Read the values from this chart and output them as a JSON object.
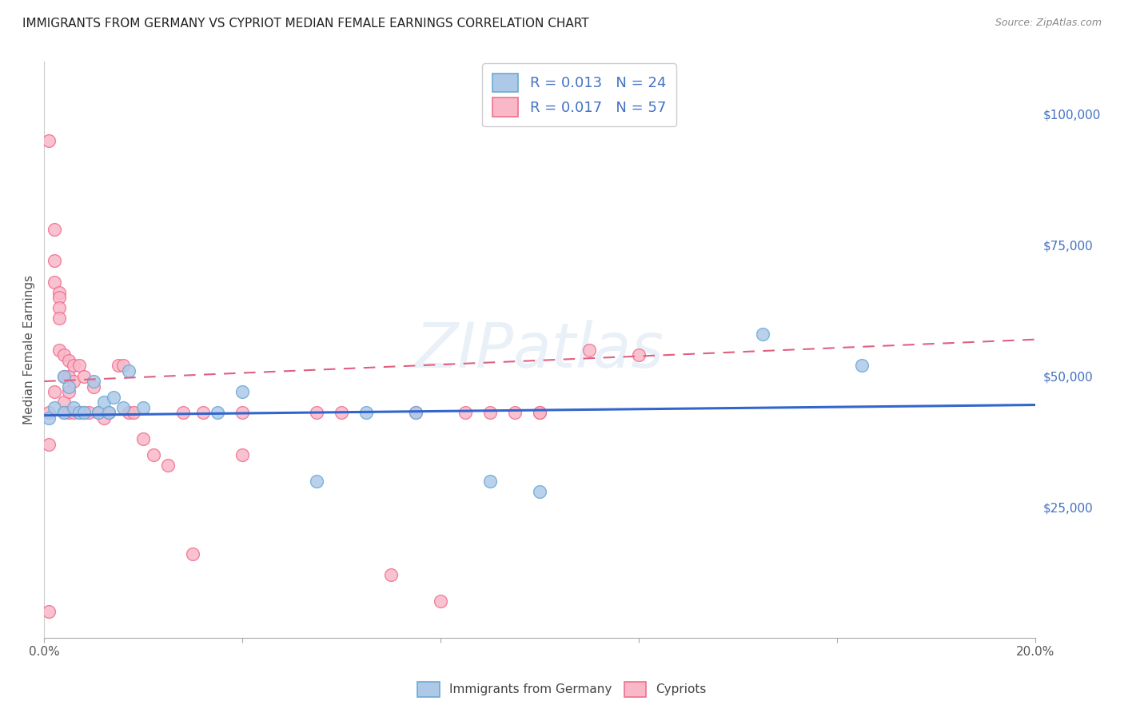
{
  "title": "IMMIGRANTS FROM GERMANY VS CYPRIOT MEDIAN FEMALE EARNINGS CORRELATION CHART",
  "source": "Source: ZipAtlas.com",
  "ylabel": "Median Female Earnings",
  "xlim": [
    0,
    0.2
  ],
  "ylim": [
    0,
    110000
  ],
  "xticks": [
    0.0,
    0.04,
    0.08,
    0.12,
    0.16,
    0.2
  ],
  "xticklabels": [
    "0.0%",
    "",
    "",
    "",
    "",
    "20.0%"
  ],
  "yticks_right": [
    0,
    25000,
    50000,
    75000,
    100000
  ],
  "yticklabels_right": [
    "",
    "$25,000",
    "$50,000",
    "$75,000",
    "$100,000"
  ],
  "legend_label_blue": "Immigrants from Germany",
  "legend_label_pink": "Cypriots",
  "watermark": "ZIPatlas",
  "blue_scatter_color": "#aec9e8",
  "blue_edge_color": "#6aaad4",
  "pink_scatter_color": "#f9b8c8",
  "pink_edge_color": "#f07090",
  "line_blue_color": "#3366cc",
  "line_pink_color": "#e06080",
  "legend_r_color": "#4472c4",
  "ylabel_color": "#555555",
  "tick_color": "#555555",
  "grid_color": "#d0d0d0",
  "background_color": "#ffffff",
  "blue_x": [
    0.001,
    0.002,
    0.004,
    0.004,
    0.005,
    0.006,
    0.007,
    0.008,
    0.01,
    0.011,
    0.012,
    0.013,
    0.014,
    0.016,
    0.017,
    0.02,
    0.035,
    0.04,
    0.055,
    0.065,
    0.075,
    0.09,
    0.1,
    0.145,
    0.165
  ],
  "blue_y": [
    42000,
    44000,
    50000,
    43000,
    48000,
    44000,
    43000,
    43000,
    49000,
    43000,
    45000,
    43000,
    46000,
    44000,
    51000,
    44000,
    43000,
    47000,
    30000,
    43000,
    43000,
    30000,
    28000,
    58000,
    52000
  ],
  "pink_x": [
    0.001,
    0.001,
    0.001,
    0.001,
    0.002,
    0.002,
    0.002,
    0.002,
    0.003,
    0.003,
    0.003,
    0.003,
    0.003,
    0.004,
    0.004,
    0.004,
    0.004,
    0.005,
    0.005,
    0.005,
    0.005,
    0.006,
    0.006,
    0.006,
    0.007,
    0.007,
    0.008,
    0.008,
    0.009,
    0.01,
    0.011,
    0.012,
    0.013,
    0.015,
    0.016,
    0.017,
    0.018,
    0.02,
    0.022,
    0.025,
    0.028,
    0.03,
    0.032,
    0.04,
    0.04,
    0.055,
    0.06,
    0.07,
    0.075,
    0.08,
    0.085,
    0.09,
    0.095,
    0.1,
    0.1,
    0.11,
    0.12
  ],
  "pink_y": [
    95000,
    43000,
    37000,
    5000,
    78000,
    72000,
    68000,
    47000,
    66000,
    65000,
    63000,
    61000,
    55000,
    54000,
    50000,
    45000,
    43000,
    53000,
    50000,
    47000,
    43000,
    52000,
    49000,
    43000,
    52000,
    43000,
    50000,
    43000,
    43000,
    48000,
    43000,
    42000,
    43000,
    52000,
    52000,
    43000,
    43000,
    38000,
    35000,
    33000,
    43000,
    16000,
    43000,
    35000,
    43000,
    43000,
    43000,
    12000,
    43000,
    7000,
    43000,
    43000,
    43000,
    43000,
    43000,
    55000,
    54000
  ]
}
